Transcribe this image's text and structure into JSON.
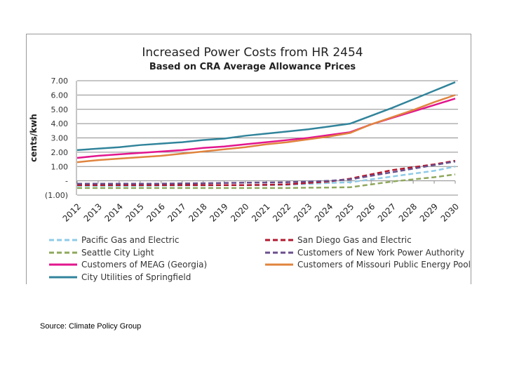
{
  "chart_data": {
    "type": "line",
    "title": "Increased Power Costs from HR 2454",
    "subtitle": "Based on CRA Average Allowance Prices",
    "ylabel": "cents/kwh",
    "xlabel": "",
    "ylim": [
      -1,
      7
    ],
    "yticks": [
      "(1.00)",
      "-",
      "1.00",
      "2.00",
      "3.00",
      "4.00",
      "5.00",
      "6.00",
      "7.00"
    ],
    "grid": true,
    "legend_position": "bottom",
    "x": [
      "2012",
      "2013",
      "2014",
      "2015",
      "2016",
      "2017",
      "2018",
      "2019",
      "2020",
      "2021",
      "2022",
      "2023",
      "2024",
      "2025",
      "2026",
      "2027",
      "2028",
      "2029",
      "2030"
    ],
    "series": [
      {
        "name": "Pacific Gas and Electric",
        "color": "#8ecbe8",
        "dash": true,
        "values": [
          -0.35,
          -0.35,
          -0.35,
          -0.35,
          -0.33,
          -0.32,
          -0.32,
          -0.3,
          -0.3,
          -0.3,
          -0.28,
          -0.22,
          -0.15,
          -0.1,
          0.1,
          0.3,
          0.5,
          0.7,
          1.0
        ]
      },
      {
        "name": "San Diego Gas and Electric",
        "color": "#b3182e",
        "dash": true,
        "values": [
          -0.3,
          -0.3,
          -0.3,
          -0.3,
          -0.3,
          -0.3,
          -0.3,
          -0.3,
          -0.3,
          -0.28,
          -0.25,
          -0.15,
          -0.05,
          0.15,
          0.45,
          0.75,
          0.95,
          1.15,
          1.4
        ]
      },
      {
        "name": "Seattle City Light",
        "color": "#8fa85c",
        "dash": true,
        "values": [
          -0.5,
          -0.5,
          -0.5,
          -0.5,
          -0.5,
          -0.5,
          -0.5,
          -0.5,
          -0.5,
          -0.5,
          -0.5,
          -0.48,
          -0.47,
          -0.45,
          -0.25,
          -0.05,
          0.1,
          0.25,
          0.45
        ]
      },
      {
        "name": "Customers of New York Power Authority",
        "color": "#6a4f8c",
        "dash": true,
        "values": [
          -0.2,
          -0.2,
          -0.2,
          -0.2,
          -0.2,
          -0.18,
          -0.17,
          -0.15,
          -0.13,
          -0.12,
          -0.1,
          -0.05,
          0.0,
          0.1,
          0.35,
          0.6,
          0.85,
          1.1,
          1.35
        ]
      },
      {
        "name": "Customers of MEAG (Georgia)",
        "color": "#e2168d",
        "dash": false,
        "values": [
          1.6,
          1.75,
          1.85,
          1.95,
          2.05,
          2.15,
          2.3,
          2.4,
          2.55,
          2.7,
          2.85,
          3.0,
          3.2,
          3.4,
          3.95,
          4.4,
          4.85,
          5.3,
          5.75
        ]
      },
      {
        "name": "Customers of Missouri Public Energy Pool",
        "color": "#e0843e",
        "dash": false,
        "values": [
          1.3,
          1.45,
          1.55,
          1.65,
          1.75,
          1.9,
          2.05,
          2.2,
          2.35,
          2.55,
          2.7,
          2.9,
          3.1,
          3.35,
          3.95,
          4.45,
          4.95,
          5.5,
          6.0
        ]
      },
      {
        "name": "City Utilities of Springfield",
        "color": "#31849b",
        "dash": false,
        "values": [
          2.15,
          2.25,
          2.35,
          2.5,
          2.6,
          2.7,
          2.85,
          2.95,
          3.15,
          3.3,
          3.45,
          3.6,
          3.8,
          4.0,
          4.55,
          5.1,
          5.7,
          6.3,
          6.9
        ]
      }
    ]
  },
  "source": "Source:  Climate Policy Group"
}
